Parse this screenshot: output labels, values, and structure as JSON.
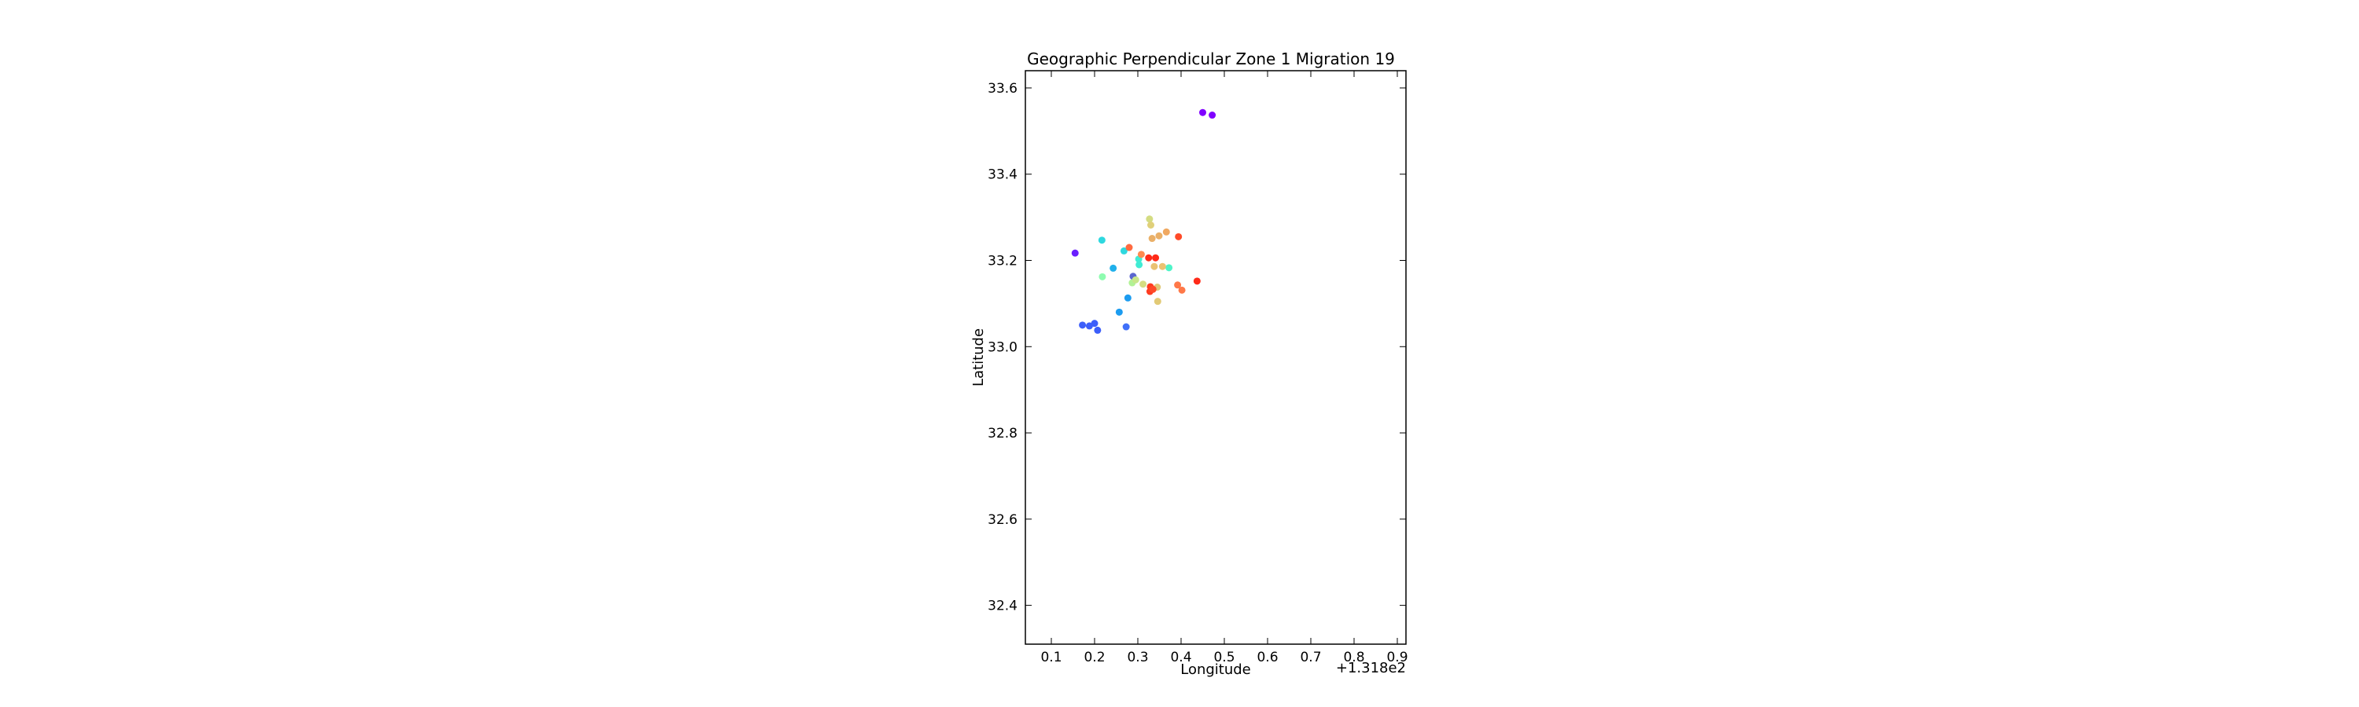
{
  "chart_data": {
    "type": "scatter",
    "title": "Geographic Perpendicular Zone 1 Migration 19",
    "xlabel": "Longitude",
    "ylabel": "Latitude",
    "x_offset_label": "+1.318e2",
    "xlim": [
      0.04,
      0.92
    ],
    "ylim": [
      32.31,
      33.64
    ],
    "xticks": [
      "0.1",
      "0.2",
      "0.3",
      "0.4",
      "0.5",
      "0.6",
      "0.7",
      "0.8",
      "0.9"
    ],
    "yticks": [
      "32.4",
      "32.6",
      "32.8",
      "33.0",
      "33.2",
      "33.4",
      "33.6"
    ],
    "grid": false,
    "colormap": "rainbow",
    "points": [
      {
        "x": 0.45,
        "y": 33.543,
        "color": "#8000ff"
      },
      {
        "x": 0.472,
        "y": 33.537,
        "color": "#8000ff"
      },
      {
        "x": 0.155,
        "y": 33.217,
        "color": "#6a1ffe"
      },
      {
        "x": 0.172,
        "y": 33.05,
        "color": "#3c5efa"
      },
      {
        "x": 0.188,
        "y": 33.048,
        "color": "#3c5efa"
      },
      {
        "x": 0.2,
        "y": 33.054,
        "color": "#3c5efa"
      },
      {
        "x": 0.207,
        "y": 33.038,
        "color": "#3c5efa"
      },
      {
        "x": 0.273,
        "y": 33.046,
        "color": "#4070f9"
      },
      {
        "x": 0.257,
        "y": 33.08,
        "color": "#1c9cf0"
      },
      {
        "x": 0.277,
        "y": 33.113,
        "color": "#1c9cf0"
      },
      {
        "x": 0.243,
        "y": 33.182,
        "color": "#20b0eb"
      },
      {
        "x": 0.217,
        "y": 33.247,
        "color": "#2ed8df"
      },
      {
        "x": 0.268,
        "y": 33.222,
        "color": "#2ed8df"
      },
      {
        "x": 0.302,
        "y": 33.203,
        "color": "#40ecd4"
      },
      {
        "x": 0.303,
        "y": 33.19,
        "color": "#40ecd4"
      },
      {
        "x": 0.372,
        "y": 33.183,
        "color": "#4ef4c8"
      },
      {
        "x": 0.218,
        "y": 33.162,
        "color": "#8efcb0"
      },
      {
        "x": 0.289,
        "y": 33.163,
        "color": "#5a66cf"
      },
      {
        "x": 0.287,
        "y": 33.148,
        "color": "#b2f296"
      },
      {
        "x": 0.295,
        "y": 33.155,
        "color": "#c8e68a"
      },
      {
        "x": 0.312,
        "y": 33.145,
        "color": "#d6dc82"
      },
      {
        "x": 0.327,
        "y": 33.296,
        "color": "#d4dc82"
      },
      {
        "x": 0.33,
        "y": 33.282,
        "color": "#e0d07a"
      },
      {
        "x": 0.333,
        "y": 33.251,
        "color": "#eab068"
      },
      {
        "x": 0.349,
        "y": 33.257,
        "color": "#eab068"
      },
      {
        "x": 0.366,
        "y": 33.266,
        "color": "#f0a860"
      },
      {
        "x": 0.338,
        "y": 33.186,
        "color": "#eac272"
      },
      {
        "x": 0.357,
        "y": 33.186,
        "color": "#eac272"
      },
      {
        "x": 0.346,
        "y": 33.105,
        "color": "#e2ca76"
      },
      {
        "x": 0.345,
        "y": 33.138,
        "color": "#e0c878"
      },
      {
        "x": 0.308,
        "y": 33.214,
        "color": "#ff8a50"
      },
      {
        "x": 0.28,
        "y": 33.23,
        "color": "#ff6a40"
      },
      {
        "x": 0.325,
        "y": 33.206,
        "color": "#ff2a18"
      },
      {
        "x": 0.341,
        "y": 33.206,
        "color": "#ff2a18"
      },
      {
        "x": 0.329,
        "y": 33.139,
        "color": "#ff3c20"
      },
      {
        "x": 0.328,
        "y": 33.128,
        "color": "#ff3c20"
      },
      {
        "x": 0.335,
        "y": 33.133,
        "color": "#ff4a28"
      },
      {
        "x": 0.394,
        "y": 33.255,
        "color": "#ff4a28"
      },
      {
        "x": 0.392,
        "y": 33.143,
        "color": "#ff7848"
      },
      {
        "x": 0.402,
        "y": 33.131,
        "color": "#ff7848"
      },
      {
        "x": 0.437,
        "y": 33.152,
        "color": "#ff2a18"
      }
    ]
  }
}
